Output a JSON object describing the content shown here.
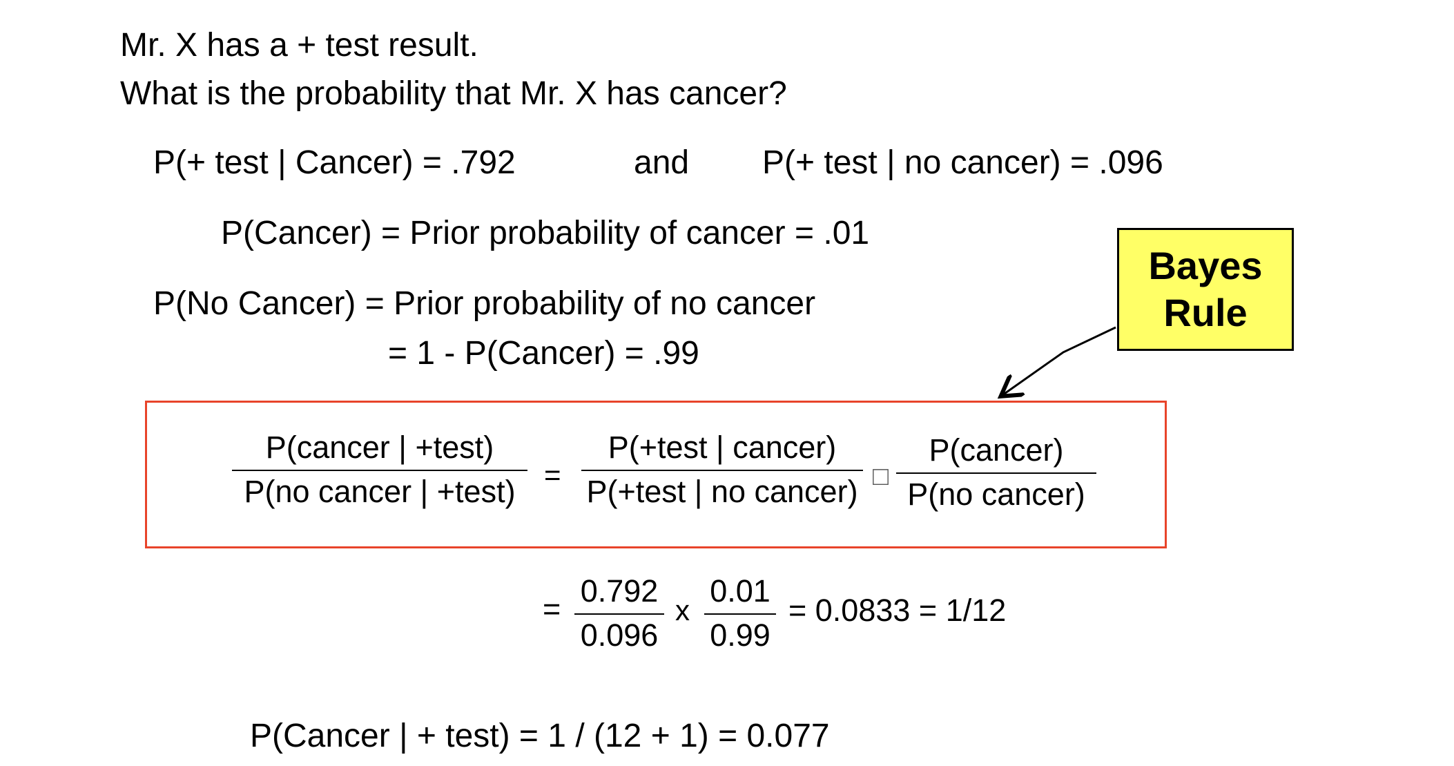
{
  "intro": {
    "line1": "Mr. X has a + test result.",
    "line2": "What is the probability that Mr. X has cancer?"
  },
  "givens": {
    "p_pos_given_cancer": "P(+ test | Cancer)  =  .792",
    "and": "and",
    "p_pos_given_no_cancer": "P(+ test | no cancer)  =  .096",
    "p_cancer": "P(Cancer) = Prior probability of cancer = .01",
    "p_no_cancer_lhs": "P(No Cancer)  =  Prior probability of no cancer",
    "p_no_cancer_rhs": "=  1 - P(Cancer) = .99"
  },
  "callout": {
    "line1": "Bayes",
    "line2": "Rule",
    "background": "#ffff66"
  },
  "formula": {
    "border_color": "#e8442a",
    "lhs_num": "P(cancer | +test)",
    "lhs_den": "P(no cancer | +test)",
    "equals": "=",
    "lr_num": "P(+test | cancer)",
    "lr_den": "P(+test | no cancer)",
    "times_glyph": "□",
    "prior_num": "P(cancer)",
    "prior_den": "P(no cancer)"
  },
  "computation": {
    "equals": "=",
    "a_num": "0.792",
    "a_den": "0.096",
    "times": "x",
    "b_num": "0.01",
    "b_den": "0.99",
    "result": "=  0.0833  =  1/12"
  },
  "final": {
    "text": "P(Cancer | + test)  =  1 / (12 + 1)  =  0.077"
  }
}
